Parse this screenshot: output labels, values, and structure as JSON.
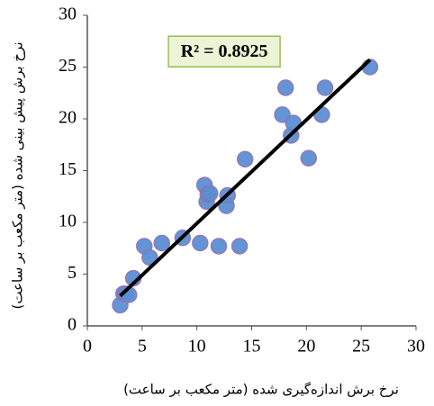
{
  "chart_data": {
    "type": "scatter",
    "x_label": "نرخ برش اندازه‌گیری شده (متر مکعب بر ساعت)",
    "y_label": "نرخ برش پیش بینی شده (متر مکعب بر ساعت)",
    "series": [
      {
        "color": "#5b8fd3",
        "edge_color": "#8a74b4",
        "x": [
          3,
          3.3,
          3.5,
          3.8,
          4.2,
          5.2,
          5.7,
          6.8,
          8.7,
          10.3,
          10.7,
          10.9,
          11,
          11.2,
          12,
          12.7,
          12.8,
          13.9,
          14.4,
          17.8,
          18.1,
          18.6,
          18.8,
          20.2,
          21.4,
          21.7,
          25.8
        ],
        "values": [
          2,
          3.1,
          3.1,
          3,
          4.6,
          7.7,
          6.6,
          8,
          8.5,
          8,
          13.6,
          12,
          12.7,
          12.8,
          7.7,
          11.6,
          12.6,
          7.7,
          16.1,
          20.4,
          23,
          18.4,
          19.6,
          16.2,
          20.4,
          23,
          25
        ]
      }
    ],
    "trendline": {
      "x": [
        3,
        25.8
      ],
      "y": [
        2.9,
        25.7
      ],
      "color": "#000000"
    },
    "annotation": {
      "text": "R² = 0.8925",
      "fill": "#ebf5d6",
      "border": "#9bbb59",
      "x": 12.5,
      "y": 26.5
    },
    "xlim": [
      0,
      30
    ],
    "xticks": [
      0,
      5,
      10,
      15,
      20,
      25,
      30
    ],
    "ylim": [
      0,
      30
    ],
    "yticks": [
      0,
      5,
      10,
      15,
      20,
      25,
      30
    ],
    "grid": false
  }
}
